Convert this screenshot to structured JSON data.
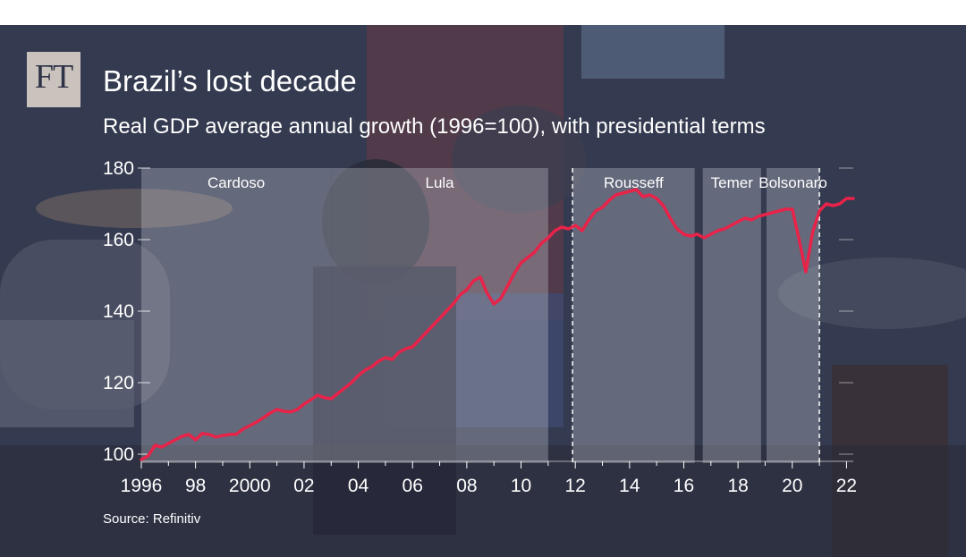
{
  "brand": {
    "logo_text": "FT"
  },
  "header": {
    "title": "Brazil’s lost decade",
    "subtitle": "Real GDP average annual growth (1996=100), with presidential terms"
  },
  "footer": {
    "source": "Source: Refinitiv"
  },
  "colors": {
    "line": "#e8234a",
    "grid": "#ffffff",
    "text": "#ffffff",
    "term_panel": "#c9ccd6"
  },
  "chart_data": {
    "type": "line",
    "title": "Brazil’s lost decade",
    "subtitle": "Real GDP average annual growth (1996=100), with presidential terms",
    "xlabel": "",
    "ylabel": "",
    "xlim": [
      1996,
      2022.25
    ],
    "ylim": [
      100,
      180
    ],
    "yticks": [
      100,
      120,
      140,
      160,
      180
    ],
    "xticks": [
      {
        "value": 1996,
        "label": "1996"
      },
      {
        "value": 1998,
        "label": "98"
      },
      {
        "value": 2000,
        "label": "2000"
      },
      {
        "value": 2002,
        "label": "02"
      },
      {
        "value": 2004,
        "label": "04"
      },
      {
        "value": 2006,
        "label": "06"
      },
      {
        "value": 2008,
        "label": "08"
      },
      {
        "value": 2010,
        "label": "10"
      },
      {
        "value": 2012,
        "label": "12"
      },
      {
        "value": 2014,
        "label": "14"
      },
      {
        "value": 2016,
        "label": "16"
      },
      {
        "value": 2018,
        "label": "18"
      },
      {
        "value": 2020,
        "label": "20"
      },
      {
        "value": 2022,
        "label": "22"
      }
    ],
    "grid": false,
    "terms": [
      {
        "name": "Cardoso",
        "start": 1996,
        "end": 2003
      },
      {
        "name": "Lula",
        "start": 2003,
        "end": 2011
      },
      {
        "name": "Rousseff",
        "start": 2011.9,
        "end": 2016.4
      },
      {
        "name": "Temer",
        "start": 2016.7,
        "end": 2018.85
      },
      {
        "name": "Bolsonaro",
        "start": 2019.05,
        "end": 2021.0
      }
    ],
    "term_dividers": [
      2011.9,
      2021.0
    ],
    "series": [
      {
        "x": [
          1996.0,
          1996.25,
          1996.5,
          1996.75,
          1997.0,
          1997.25,
          1997.5,
          1997.75,
          1998.0,
          1998.25,
          1998.5,
          1998.75,
          1999.0,
          1999.25,
          1999.5,
          1999.75,
          2000.0,
          2000.25,
          2000.5,
          2000.75,
          2001.0,
          2001.25,
          2001.5,
          2001.75,
          2002.0,
          2002.25,
          2002.5,
          2002.75,
          2003.0,
          2003.25,
          2003.5,
          2003.75,
          2004.0,
          2004.25,
          2004.5,
          2004.75,
          2005.0,
          2005.25,
          2005.5,
          2005.75,
          2006.0,
          2006.25,
          2006.5,
          2006.75,
          2007.0,
          2007.25,
          2007.5,
          2007.75,
          2008.0,
          2008.25,
          2008.5,
          2008.75,
          2009.0,
          2009.25,
          2009.5,
          2009.75,
          2010.0,
          2010.25,
          2010.5,
          2010.75,
          2011.0,
          2011.25,
          2011.5,
          2011.75,
          2012.0,
          2012.25,
          2012.5,
          2012.75,
          2013.0,
          2013.25,
          2013.5,
          2013.75,
          2014.0,
          2014.25,
          2014.5,
          2014.75,
          2015.0,
          2015.25,
          2015.5,
          2015.75,
          2016.0,
          2016.25,
          2016.5,
          2016.75,
          2017.0,
          2017.25,
          2017.5,
          2017.75,
          2018.0,
          2018.25,
          2018.5,
          2018.75,
          2019.0,
          2019.25,
          2019.5,
          2019.75,
          2020.0,
          2020.25,
          2020.5,
          2020.75,
          2021.0,
          2021.25,
          2021.5,
          2021.75,
          2022.0,
          2022.25
        ],
        "values": [
          98.5,
          99.5,
          102.5,
          102.0,
          103.0,
          104.0,
          105.0,
          105.5,
          104.0,
          105.8,
          105.5,
          104.8,
          105.2,
          105.5,
          105.6,
          107.0,
          108.0,
          109.0,
          110.2,
          111.5,
          112.5,
          112.0,
          111.8,
          112.5,
          114.0,
          115.2,
          116.5,
          115.8,
          115.5,
          117.0,
          118.5,
          120.0,
          122.0,
          123.5,
          124.5,
          126.0,
          127.0,
          126.5,
          128.5,
          129.5,
          130.0,
          132.0,
          134.0,
          136.0,
          138.0,
          140.0,
          142.0,
          144.5,
          146.0,
          148.5,
          149.5,
          145.0,
          142.0,
          143.5,
          147.0,
          150.5,
          153.5,
          155.0,
          156.5,
          159.0,
          160.5,
          162.5,
          163.5,
          163.0,
          164.0,
          162.5,
          165.5,
          168.0,
          169.0,
          171.0,
          172.5,
          173.0,
          173.5,
          174.0,
          172.0,
          172.5,
          171.5,
          169.5,
          166.0,
          163.0,
          161.5,
          161.0,
          161.5,
          160.5,
          161.5,
          162.5,
          163.0,
          164.0,
          165.0,
          166.0,
          165.5,
          166.5,
          167.0,
          167.5,
          168.0,
          168.5,
          168.5,
          160.0,
          151.0,
          162.0,
          168.0,
          170.0,
          169.5,
          170.0,
          171.5,
          171.5
        ]
      }
    ]
  }
}
